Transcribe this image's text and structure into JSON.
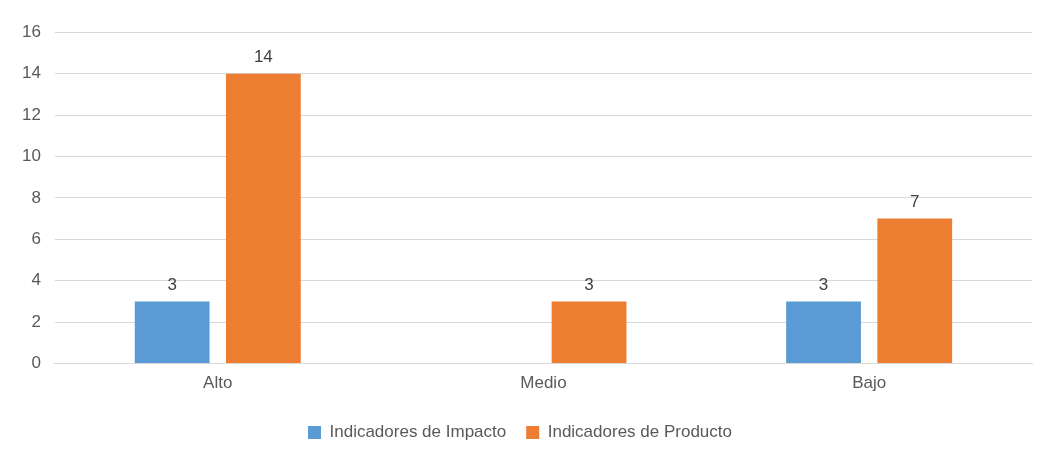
{
  "chart_data": {
    "type": "bar",
    "categories": [
      "Alto",
      "Medio",
      "Bajo"
    ],
    "series": [
      {
        "name": "Indicadores de Impacto",
        "color": "#5b9bd5",
        "values": [
          3,
          null,
          3
        ]
      },
      {
        "name": "Indicadores de Producto",
        "color": "#ed7d31",
        "values": [
          14,
          3,
          7
        ]
      }
    ],
    "ylim": [
      0,
      16
    ],
    "yticks": [
      0,
      2,
      4,
      6,
      8,
      10,
      12,
      14,
      16
    ],
    "grid": "y",
    "legend": "bottom",
    "data_labels": true
  }
}
